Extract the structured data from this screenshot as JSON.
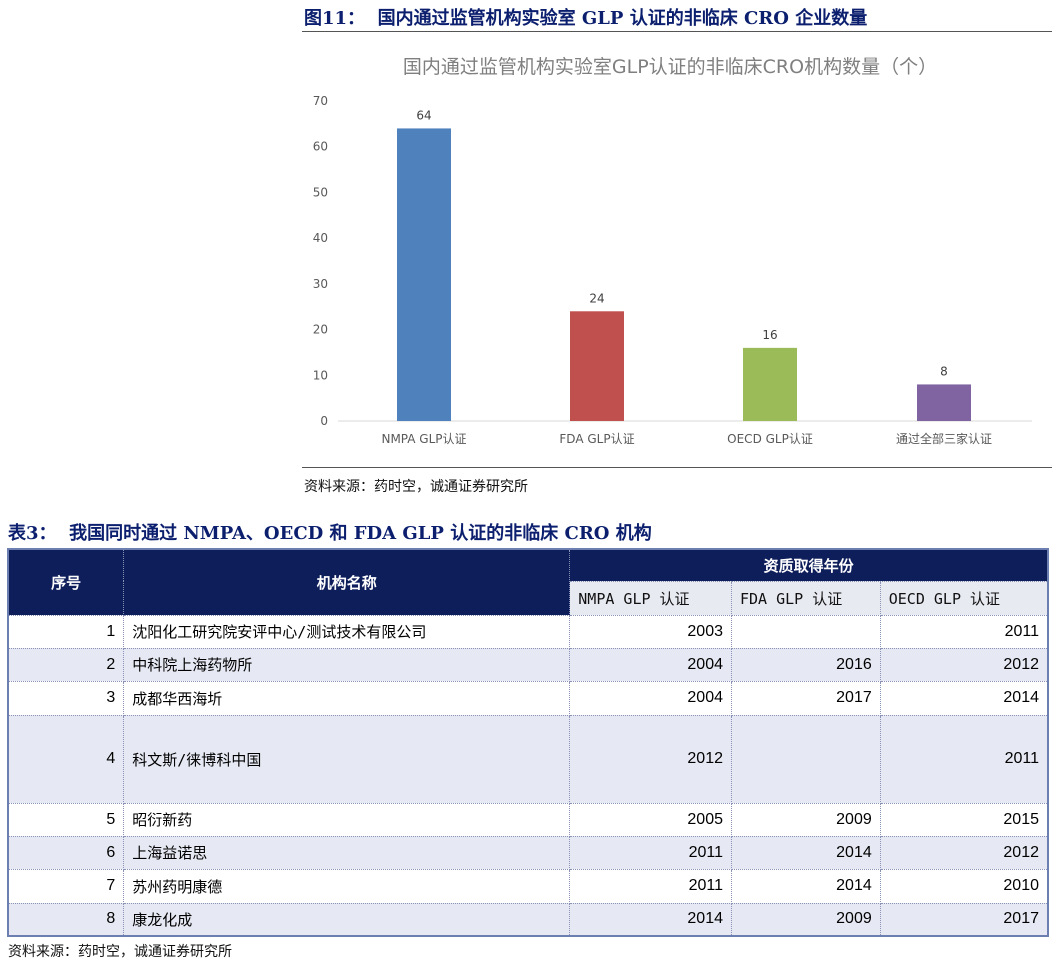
{
  "figure": {
    "label": "图11：",
    "title": "国内通过监管机构实验室 GLP 认证的非临床 CRO 企业数量",
    "source": "资料来源：药时空，诚通证券研究所"
  },
  "chart_data": {
    "type": "bar",
    "title": "国内通过监管机构实验室GLP认证的非临床CRO机构数量（个）",
    "categories": [
      "NMPA GLP认证",
      "FDA GLP认证",
      "OECD GLP认证",
      "通过全部三家认证"
    ],
    "values": [
      64,
      24,
      16,
      8
    ],
    "colors": [
      "#4f81bd",
      "#c0504d",
      "#9bbb59",
      "#8064a2"
    ],
    "ylim": [
      0,
      70
    ],
    "yticks": [
      0,
      10,
      20,
      30,
      40,
      50,
      60,
      70
    ],
    "grid": false,
    "data_labels": true
  },
  "table": {
    "label": "表3：",
    "title": "我国同时通过 NMPA、OECD 和 FDA GLP 认证的非临床 CRO 机构",
    "headers": {
      "index": "序号",
      "name": "机构名称",
      "group": "资质取得年份",
      "nmpa": "NMPA GLP 认证",
      "fda": "FDA GLP 认证",
      "oecd": "OECD GLP 认证"
    },
    "rows": [
      {
        "index": "1",
        "name": "沈阳化工研究院安评中心/测试技术有限公司",
        "nmpa": "2003",
        "fda": "",
        "oecd": "2011"
      },
      {
        "index": "2",
        "name": "中科院上海药物所",
        "nmpa": "2004",
        "fda": "2016",
        "oecd": "2012"
      },
      {
        "index": "3",
        "name": "成都华西海圻",
        "nmpa": "2004",
        "fda": "2017",
        "oecd": "2014"
      },
      {
        "index": "4",
        "name": "科文斯/徕博科中国",
        "nmpa": "2012",
        "fda": "",
        "oecd": "2011"
      },
      {
        "index": "5",
        "name": "昭衍新药",
        "nmpa": "2005",
        "fda": "2009",
        "oecd": "2015"
      },
      {
        "index": "6",
        "name": "上海益诺思",
        "nmpa": "2011",
        "fda": "2014",
        "oecd": "2012"
      },
      {
        "index": "7",
        "name": "苏州药明康德",
        "nmpa": "2011",
        "fda": "2014",
        "oecd": "2010"
      },
      {
        "index": "8",
        "name": "康龙化成",
        "nmpa": "2014",
        "fda": "2009",
        "oecd": "2017"
      }
    ],
    "source": "资料来源：药时空，诚通证券研究所"
  }
}
